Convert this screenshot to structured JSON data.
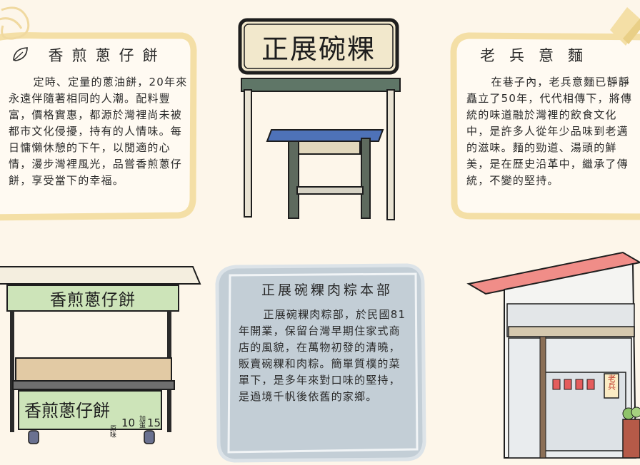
{
  "cards": {
    "scallion_pancake": {
      "title": "香煎蔥仔餅",
      "body": "定時、定量的蔥油餅，20年來永遠伴隨著相同的人潮。配料豐富，價格實惠，都源於灣裡尚未被都市文化侵擾，持有的人情味。每日慵懶休憩的下午，以閒適的心情，漫步灣裡風光，品嘗香煎蔥仔餅，享受當下的幸福。"
    },
    "old_soldier_noodles": {
      "title": "老兵意麵",
      "body": "在巷子內，老兵意麵已靜靜矗立了50年，代代相傳下，將傳統的味道融於灣裡的飲食文化中，是許多人從年少品味到老邁的滋味。麵的勁道、湯頭的鮮美，是在歷史沿革中，繼承了傳統，不變的堅持。"
    },
    "zhengzhan": {
      "title": "正展碗粿肉粽本部",
      "body": "正展碗粿肉粽部，於民國81年開業，保留台灣早期住家式商店的風貌，在萬物初發的清曉，販賣碗粿和肉粽。簡單質樸的菜單下，是多年來對口味的堅持，是過境千帆後依舊的家鄉。"
    }
  },
  "illustrations": {
    "stall_sign": "正展碗粿",
    "cart_sign": "香煎蔥仔餅",
    "cart_menu_name": "香煎蔥仔餅",
    "menu_original_label": "原味",
    "menu_original_price": "10",
    "menu_egg_label": "加蛋",
    "menu_egg_price": "15",
    "shop_sign": "老兵"
  },
  "colors": {
    "background": "#fdf6ea",
    "card_yellow_border": "#f4dfa6",
    "card_blue_bg": "#c3ced6",
    "cart_green": "#cde4b9",
    "shop_roof": "#f08d88"
  }
}
